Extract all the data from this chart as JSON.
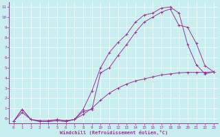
{
  "xlabel": "Windchill (Refroidissement éolien,°C)",
  "bg_color": "#c8eef0",
  "line_color": "#993399",
  "grid_color": "#aadddd",
  "xlim": [
    -0.5,
    23.5
  ],
  "ylim": [
    -0.5,
    11.5
  ],
  "xticks": [
    0,
    1,
    2,
    3,
    4,
    5,
    6,
    7,
    8,
    9,
    10,
    11,
    12,
    13,
    14,
    15,
    16,
    17,
    18,
    19,
    20,
    21,
    22,
    23
  ],
  "yticks": [
    0,
    1,
    2,
    3,
    4,
    5,
    6,
    7,
    8,
    9,
    10,
    11
  ],
  "curve1_x": [
    0,
    1,
    2,
    3,
    4,
    5,
    6,
    7,
    8,
    9,
    10,
    11,
    12,
    13,
    14,
    15,
    16,
    17,
    18,
    19,
    20,
    21,
    22,
    23
  ],
  "curve1_y": [
    -0.3,
    0.9,
    -0.1,
    -0.3,
    -0.3,
    -0.2,
    -0.3,
    -0.1,
    0.9,
    2.7,
    5.0,
    6.5,
    7.5,
    8.3,
    9.5,
    10.2,
    10.4,
    10.9,
    11.0,
    10.4,
    7.3,
    5.3,
    4.4,
    4.6
  ],
  "curve2_x": [
    0,
    1,
    2,
    3,
    4,
    5,
    6,
    7,
    8,
    9,
    10,
    11,
    12,
    13,
    14,
    15,
    16,
    17,
    18,
    19,
    20,
    21,
    22,
    23
  ],
  "curve2_y": [
    -0.3,
    0.9,
    -0.1,
    -0.3,
    -0.3,
    -0.2,
    -0.3,
    -0.1,
    0.7,
    0.9,
    4.5,
    5.0,
    6.2,
    7.3,
    8.5,
    9.5,
    10.0,
    10.5,
    10.8,
    9.2,
    9.0,
    7.4,
    5.2,
    4.6
  ],
  "curve3_x": [
    0,
    1,
    2,
    3,
    4,
    5,
    6,
    7,
    8,
    9,
    10,
    11,
    12,
    13,
    14,
    15,
    16,
    17,
    18,
    19,
    20,
    21,
    22,
    23
  ],
  "curve3_y": [
    -0.3,
    0.6,
    -0.1,
    -0.2,
    -0.2,
    -0.1,
    -0.2,
    -0.1,
    0.4,
    1.0,
    1.8,
    2.5,
    3.0,
    3.4,
    3.7,
    3.9,
    4.1,
    4.3,
    4.4,
    4.5,
    4.55,
    4.55,
    4.55,
    4.6
  ]
}
